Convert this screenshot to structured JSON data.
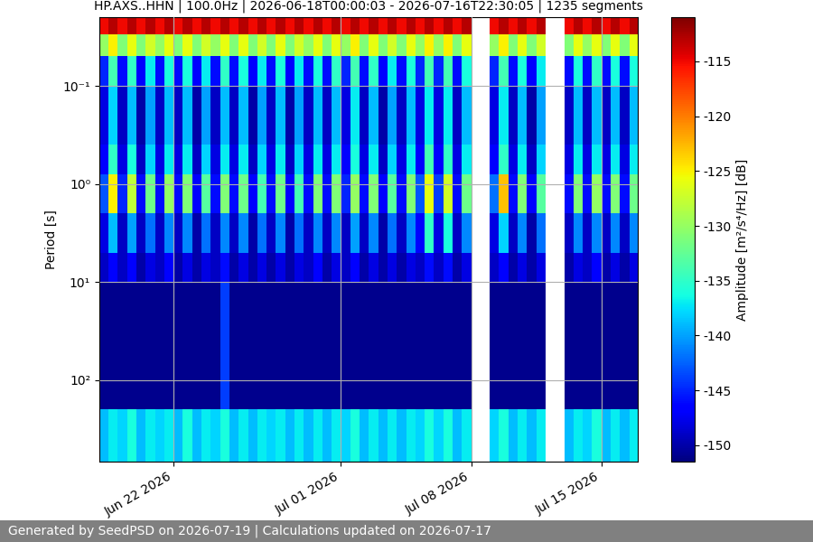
{
  "chart_data": {
    "type": "heatmap",
    "title": "HP.AXS..HHN | 100.0Hz | 2026-06-18T00:00:03 - 2026-07-16T22:30:05 | 1235 segments",
    "ylabel": "Period [s]",
    "log": "y",
    "grid": true,
    "x": [
      "2026-06-18T00:00",
      "2026-06-18T12:00",
      "2026-06-19T00:00",
      "2026-06-19T12:00",
      "2026-06-20T00:00",
      "2026-06-20T12:00",
      "2026-06-21T00:00",
      "2026-06-21T12:00",
      "2026-06-22T00:00",
      "2026-06-22T12:00",
      "2026-06-23T00:00",
      "2026-06-23T12:00",
      "2026-06-24T00:00",
      "2026-06-24T12:00",
      "2026-06-25T00:00",
      "2026-06-25T12:00",
      "2026-06-26T00:00",
      "2026-06-26T12:00",
      "2026-06-27T00:00",
      "2026-06-27T12:00",
      "2026-06-28T00:00",
      "2026-06-28T12:00",
      "2026-06-29T00:00",
      "2026-06-29T12:00",
      "2026-06-30T00:00",
      "2026-06-30T12:00",
      "2026-07-01T00:00",
      "2026-07-01T12:00",
      "2026-07-02T00:00",
      "2026-07-02T12:00",
      "2026-07-03T00:00",
      "2026-07-03T12:00",
      "2026-07-04T00:00",
      "2026-07-04T12:00",
      "2026-07-05T00:00",
      "2026-07-05T12:00",
      "2026-07-06T00:00",
      "2026-07-06T12:00",
      "2026-07-07T00:00",
      "2026-07-07T12:00",
      "2026-07-08T00:00",
      "2026-07-08T12:00",
      "2026-07-09T00:00",
      "2026-07-09T12:00",
      "2026-07-10T00:00",
      "2026-07-10T12:00",
      "2026-07-11T00:00",
      "2026-07-11T12:00",
      "2026-07-12T00:00",
      "2026-07-12T12:00",
      "2026-07-13T00:00",
      "2026-07-13T12:00",
      "2026-07-14T00:00",
      "2026-07-14T12:00",
      "2026-07-15T00:00",
      "2026-07-15T12:00",
      "2026-07-16T00:00",
      "2026-07-16T12:00"
    ],
    "xlim": [
      "2026-06-18T00:00:03",
      "2026-07-16T22:30:05"
    ],
    "xticks": [
      {
        "value": "2026-06-22",
        "label": "Jun 22 2026"
      },
      {
        "value": "2026-07-01",
        "label": "Jul 01 2026"
      },
      {
        "value": "2026-07-08",
        "label": "Jul 08 2026"
      },
      {
        "value": "2026-07-15",
        "label": "Jul 15 2026"
      }
    ],
    "ylim": [
      680,
      0.02
    ],
    "yticks": [
      {
        "value": 0.1,
        "label": "10⁻¹"
      },
      {
        "value": 1,
        "label": "10⁰"
      },
      {
        "value": 10,
        "label": "10¹"
      },
      {
        "value": 100,
        "label": "10²"
      }
    ],
    "period_edges": [
      0.02,
      0.03,
      0.05,
      0.1,
      0.4,
      0.8,
      2,
      5,
      10,
      200,
      680
    ],
    "cells": [
      [
        -115,
        -113,
        -115,
        -113,
        -115,
        -113,
        -115,
        -113,
        -115,
        -113,
        -115,
        -113,
        -115,
        -113,
        -115,
        -113,
        -115,
        -113,
        -115,
        -113,
        -115,
        -113,
        -115,
        -113,
        -115,
        -113,
        -115,
        -113,
        -115,
        -113,
        -115,
        -113,
        -115,
        -113,
        -115,
        -113,
        -115,
        -113,
        -115,
        -113,
        null,
        null,
        -115,
        -113,
        -115,
        -113,
        -115,
        -113,
        null,
        null,
        -115,
        -113,
        -115,
        -113,
        -115,
        -113,
        -115,
        -113
      ],
      [
        -130,
        -125,
        -131,
        -126,
        -131,
        -127,
        -130,
        -126,
        -131,
        -126,
        -131,
        -127,
        -130,
        -126,
        -131,
        -126,
        -131,
        -127,
        -131,
        -126,
        -131,
        -127,
        -130,
        -126,
        -131,
        -126,
        -130,
        -125,
        -131,
        -126,
        -131,
        -127,
        -131,
        -126,
        -130,
        -125,
        -130,
        -125,
        -131,
        -126,
        null,
        null,
        -130,
        -125,
        -131,
        -126,
        -131,
        -127,
        null,
        null,
        -131,
        -126,
        -130,
        -126,
        -131,
        -126,
        -131,
        -126
      ],
      [
        -145,
        -134,
        -146,
        -135,
        -147,
        -137,
        -146,
        -136,
        -146,
        -136,
        -147,
        -137,
        -146,
        -135,
        -146,
        -136,
        -147,
        -137,
        -146,
        -136,
        -147,
        -137,
        -146,
        -136,
        -146,
        -135,
        -145,
        -134,
        -146,
        -135,
        -147,
        -137,
        -146,
        -136,
        -145,
        -134,
        -145,
        -134,
        -146,
        -136,
        null,
        null,
        -145,
        -134,
        -146,
        -136,
        -147,
        -137,
        null,
        null,
        -146,
        -136,
        -146,
        -135,
        -146,
        -136,
        -146,
        -136
      ],
      [
        -148,
        -138,
        -149,
        -139,
        -150,
        -140,
        -149,
        -139,
        -149,
        -139,
        -150,
        -140,
        -149,
        -139,
        -149,
        -139,
        -150,
        -140,
        -149,
        -139,
        -150,
        -140,
        -149,
        -139,
        -149,
        -139,
        -148,
        -137,
        -149,
        -139,
        -150,
        -140,
        -149,
        -139,
        -148,
        -137,
        -148,
        -137,
        -149,
        -139,
        null,
        null,
        -148,
        -137,
        -149,
        -139,
        -150,
        -140,
        null,
        null,
        -149,
        -139,
        -149,
        -139,
        -149,
        -139,
        -149,
        -139
      ],
      [
        -147,
        -135,
        -148,
        -136,
        -149,
        -138,
        -148,
        -137,
        -148,
        -137,
        -149,
        -138,
        -148,
        -137,
        -148,
        -137,
        -149,
        -138,
        -148,
        -137,
        -149,
        -138,
        -148,
        -137,
        -148,
        -137,
        -147,
        -136,
        -148,
        -137,
        -149,
        -138,
        -148,
        -137,
        -147,
        -134,
        -147,
        -135,
        -148,
        -137,
        null,
        null,
        -147,
        -135,
        -148,
        -137,
        -149,
        -138,
        null,
        null,
        -148,
        -137,
        -148,
        -137,
        -148,
        -137,
        -148,
        -137
      ],
      [
        -143,
        -125,
        -145,
        -128,
        -146,
        -132,
        -146,
        -130,
        -146,
        -131,
        -147,
        -133,
        -146,
        -131,
        -146,
        -132,
        -147,
        -134,
        -146,
        -132,
        -147,
        -134,
        -146,
        -131,
        -146,
        -131,
        -145,
        -130,
        -146,
        -131,
        -147,
        -133,
        -146,
        -131,
        -143,
        -126,
        -144,
        -127,
        -146,
        -132,
        null,
        null,
        -142,
        -123,
        -146,
        -131,
        -147,
        -133,
        null,
        null,
        -146,
        -131,
        -146,
        -130,
        -146,
        -131,
        -146,
        -132
      ],
      [
        -148,
        -139,
        -149,
        -140,
        -149,
        -142,
        -149,
        -141,
        -149,
        -141,
        -150,
        -142,
        -149,
        -141,
        -149,
        -141,
        -150,
        -142,
        -149,
        -141,
        -150,
        -142,
        -149,
        -141,
        -149,
        -141,
        -149,
        -140,
        -149,
        -141,
        -150,
        -142,
        -149,
        -141,
        -147,
        -135,
        -148,
        -136,
        -149,
        -141,
        null,
        null,
        -148,
        -138,
        -149,
        -141,
        -150,
        -142,
        null,
        null,
        -149,
        -141,
        -149,
        -141,
        -149,
        -141,
        -149,
        -141
      ],
      [
        -149,
        -147,
        -149,
        -147,
        -150,
        -148,
        -149,
        -147,
        -150,
        -148,
        -150,
        -148,
        -149,
        -146,
        -150,
        -148,
        -150,
        -148,
        -150,
        -148,
        -150,
        -148,
        -149,
        -147,
        -150,
        -148,
        -149,
        -147,
        -150,
        -148,
        -150,
        -148,
        -150,
        -148,
        -149,
        -146,
        -149,
        -146,
        -150,
        -148,
        null,
        null,
        -149,
        -147,
        -150,
        -148,
        -150,
        -148,
        null,
        null,
        -150,
        -148,
        -149,
        -147,
        -150,
        -148,
        -150,
        -148
      ],
      [
        -151,
        -151,
        -151,
        -151,
        -151,
        -151,
        -151,
        -151,
        -151,
        -151,
        -151,
        -151,
        -151,
        -144,
        -151,
        -151,
        -151,
        -151,
        -151,
        -151,
        -151,
        -151,
        -151,
        -151,
        -151,
        -151,
        -151,
        -151,
        -151,
        -151,
        -151,
        -151,
        -151,
        -151,
        -151,
        -151,
        -151,
        -151,
        -151,
        -151,
        null,
        null,
        -151,
        -151,
        -151,
        -151,
        -151,
        -151,
        null,
        null,
        -151,
        -151,
        -151,
        -151,
        -151,
        -151,
        -151,
        -151
      ],
      [
        -139,
        -137,
        -138,
        -136,
        -139,
        -137,
        -138,
        -137,
        -139,
        -136,
        -139,
        -137,
        -138,
        -136,
        -139,
        -137,
        -139,
        -137,
        -138,
        -137,
        -139,
        -137,
        -139,
        -137,
        -139,
        -137,
        -138,
        -136,
        -139,
        -137,
        -139,
        -137,
        -139,
        -137,
        -138,
        -136,
        -138,
        -136,
        -139,
        -137,
        null,
        null,
        -138,
        -136,
        -139,
        -137,
        -139,
        -137,
        null,
        null,
        -139,
        -137,
        -138,
        -136,
        -139,
        -137,
        -139,
        -137
      ]
    ],
    "colorbar": {
      "range": [
        -151.5,
        -111
      ],
      "ticks": [
        -150,
        -145,
        -140,
        -135,
        -130,
        -125,
        -120,
        -115
      ],
      "label": "Amplitude [m²/s⁴/Hz] [dB]"
    }
  },
  "footer": "Generated by SeedPSD on 2026-07-19 | Calculations updated on 2026-07-17"
}
